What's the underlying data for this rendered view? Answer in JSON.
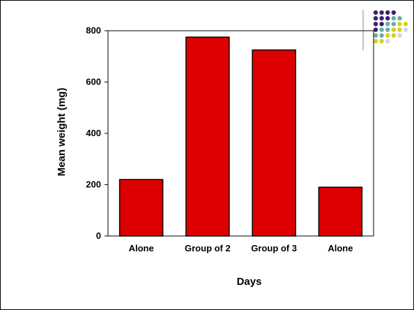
{
  "chart_data": {
    "type": "bar",
    "title": "",
    "xlabel": "Days",
    "ylabel": "Mean weight (mg)",
    "categories": [
      "Alone",
      "Group of 2",
      "Group of 3",
      "Alone"
    ],
    "values": [
      220,
      775,
      725,
      190
    ],
    "ylim": [
      0,
      800
    ],
    "yticks": [
      0,
      200,
      400,
      600,
      800
    ],
    "grid": false,
    "legend": "none",
    "bar_color": "#dd0000"
  },
  "decoration": {
    "dot_colors": [
      "#3c1f6e",
      "#6aaca6",
      "#d4d21e",
      "#d8d4e8"
    ]
  }
}
